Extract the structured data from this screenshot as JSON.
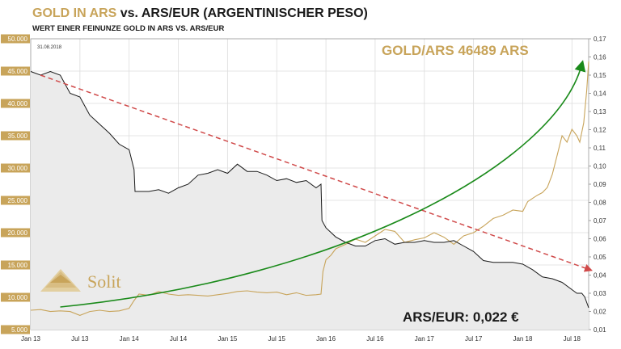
{
  "title_part1": "GOLD IN ARS",
  "title_part2": " vs. ARS/EUR (ARGENTINISCHER PESO)",
  "subtitle": "WERT EINER FEINUNZE GOLD IN ARS VS. ARS/EUR",
  "date_label": "31.08.2018",
  "annotation_gold": "GOLD/ARS 46489 ARS",
  "annotation_arseur": "ARS/EUR: 0,022 €",
  "logo_text": "Solit",
  "colors": {
    "gold": "#c8a45a",
    "black_series": "#1a1a1a",
    "trend_red": "#d04a4a",
    "trend_green": "#1a8a1a",
    "area_fill": "#ebebeb"
  },
  "chart_data": {
    "type": "line",
    "x_tick_labels": [
      "Jan 13",
      "Jul 13",
      "Jan 14",
      "Jul 14",
      "Jan 15",
      "Jul 15",
      "Jan 16",
      "Jul 16",
      "Jan 17",
      "Jul 17",
      "Jan 18",
      "Jul 18"
    ],
    "x_range": [
      2013.0,
      2018.67
    ],
    "left_axis": {
      "ylim": [
        5000,
        50000
      ],
      "tick_labels": [
        "5.000",
        "10.000",
        "15.000",
        "20.000",
        "25.000",
        "30.000",
        "35.000",
        "40.000",
        "45.000",
        "50.000"
      ]
    },
    "right_axis": {
      "ylim": [
        0.01,
        0.17
      ],
      "tick_labels": [
        "0,01",
        "0,02",
        "0,03",
        "0,04",
        "0,05",
        "0,06",
        "0,07",
        "0,08",
        "0,09",
        "0,10",
        "0,11",
        "0,12",
        "0,13",
        "0,14",
        "0,15",
        "0,16",
        "0,17"
      ]
    },
    "series": [
      {
        "axis": "left",
        "color": "#c8a45a",
        "x": [
          2013.0,
          2013.1,
          2013.2,
          2013.3,
          2013.4,
          2013.5,
          2013.6,
          2013.7,
          2013.8,
          2013.9,
          2014.0,
          2014.05,
          2014.1,
          2014.2,
          2014.3,
          2014.4,
          2014.5,
          2014.6,
          2014.7,
          2014.8,
          2014.9,
          2015.0,
          2015.1,
          2015.2,
          2015.3,
          2015.4,
          2015.5,
          2015.6,
          2015.7,
          2015.8,
          2015.9,
          2015.95,
          2015.97,
          2016.0,
          2016.05,
          2016.1,
          2016.2,
          2016.3,
          2016.4,
          2016.5,
          2016.6,
          2016.7,
          2016.8,
          2016.9,
          2017.0,
          2017.1,
          2017.2,
          2017.3,
          2017.4,
          2017.5,
          2017.6,
          2017.7,
          2017.8,
          2017.9,
          2018.0,
          2018.05,
          2018.1,
          2018.15,
          2018.2,
          2018.25,
          2018.3,
          2018.35,
          2018.4,
          2018.45,
          2018.5,
          2018.55,
          2018.58,
          2018.62,
          2018.65,
          2018.67
        ],
        "y": [
          8000,
          8100,
          7800,
          7900,
          7800,
          7200,
          7800,
          8000,
          7800,
          7900,
          8300,
          9500,
          10500,
          10300,
          10900,
          10500,
          10300,
          10400,
          10300,
          10200,
          10400,
          10600,
          10900,
          11000,
          10800,
          10700,
          10800,
          10400,
          10700,
          10300,
          10400,
          10500,
          14000,
          15800,
          16500,
          17500,
          18200,
          19000,
          18500,
          19500,
          20500,
          20200,
          18500,
          18900,
          19200,
          20000,
          19300,
          18200,
          19500,
          20000,
          21000,
          22200,
          22700,
          23500,
          23300,
          24800,
          25300,
          25800,
          26200,
          27000,
          29000,
          32000,
          35000,
          34000,
          36000,
          35000,
          34000,
          37000,
          42000,
          46489
        ]
      },
      {
        "axis": "right",
        "color": "#1a1a1a",
        "x": [
          2013.0,
          2013.1,
          2013.2,
          2013.3,
          2013.4,
          2013.5,
          2013.6,
          2013.7,
          2013.8,
          2013.9,
          2014.0,
          2014.05,
          2014.06,
          2014.1,
          2014.2,
          2014.3,
          2014.4,
          2014.5,
          2014.6,
          2014.7,
          2014.8,
          2014.9,
          2015.0,
          2015.1,
          2015.2,
          2015.3,
          2015.4,
          2015.5,
          2015.6,
          2015.7,
          2015.8,
          2015.9,
          2015.95,
          2015.96,
          2016.0,
          2016.1,
          2016.2,
          2016.3,
          2016.4,
          2016.5,
          2016.6,
          2016.7,
          2016.8,
          2016.9,
          2017.0,
          2017.1,
          2017.2,
          2017.3,
          2017.4,
          2017.5,
          2017.6,
          2017.7,
          2017.8,
          2017.9,
          2018.0,
          2018.1,
          2018.2,
          2018.3,
          2018.4,
          2018.5,
          2018.55,
          2018.6,
          2018.63,
          2018.67
        ],
        "y": [
          0.152,
          0.15,
          0.152,
          0.15,
          0.14,
          0.138,
          0.128,
          0.123,
          0.118,
          0.112,
          0.109,
          0.098,
          0.086,
          0.086,
          0.086,
          0.087,
          0.085,
          0.088,
          0.09,
          0.095,
          0.096,
          0.098,
          0.096,
          0.101,
          0.097,
          0.097,
          0.095,
          0.092,
          0.093,
          0.091,
          0.092,
          0.088,
          0.09,
          0.07,
          0.066,
          0.061,
          0.058,
          0.056,
          0.056,
          0.059,
          0.06,
          0.057,
          0.058,
          0.058,
          0.059,
          0.058,
          0.058,
          0.059,
          0.056,
          0.053,
          0.048,
          0.047,
          0.047,
          0.047,
          0.046,
          0.043,
          0.039,
          0.038,
          0.036,
          0.032,
          0.03,
          0.03,
          0.028,
          0.022
        ]
      }
    ],
    "trend_arrows": [
      {
        "name": "red-dashed-downtrend",
        "axis": "right",
        "from": [
          2013.1,
          0.15
        ],
        "to": [
          2018.68,
          0.043
        ]
      },
      {
        "name": "green-exponential-uptrend",
        "axis": "left",
        "from": [
          2013.3,
          8500
        ],
        "to": [
          2018.6,
          46000
        ]
      }
    ]
  }
}
